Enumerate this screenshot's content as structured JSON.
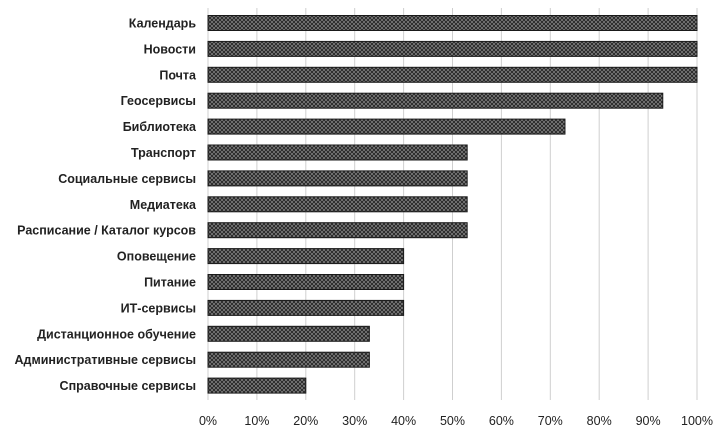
{
  "chart_data": {
    "type": "bar",
    "orientation": "horizontal",
    "title": "",
    "xlabel": "",
    "ylabel": "",
    "categories": [
      "Календарь",
      "Новости",
      "Почта",
      "Геосервисы",
      "Библиотека",
      "Транспорт",
      "Социальные сервисы",
      "Медиатека",
      "Расписание / Каталог курсов",
      "Оповещение",
      "Питание",
      "ИТ-сервисы",
      "Дистанционное обучение",
      "Административные сервисы",
      "Справочные сервисы"
    ],
    "values": [
      100,
      100,
      100,
      93,
      73,
      53,
      53,
      53,
      53,
      40,
      40,
      40,
      33,
      33,
      20
    ],
    "value_unit": "%",
    "xlim": [
      0,
      100
    ],
    "x_ticks": [
      "0%",
      "10%",
      "20%",
      "30%",
      "40%",
      "50%",
      "60%",
      "70%",
      "80%",
      "90%",
      "100%"
    ],
    "grid": "vertical",
    "legend": "none",
    "bar_fill": "crosshatch",
    "colors": {
      "bar_dark": "#2a2a2a",
      "bar_light": "#8a8a8a",
      "grid": "#cfcfcf",
      "text": "#222222"
    }
  }
}
